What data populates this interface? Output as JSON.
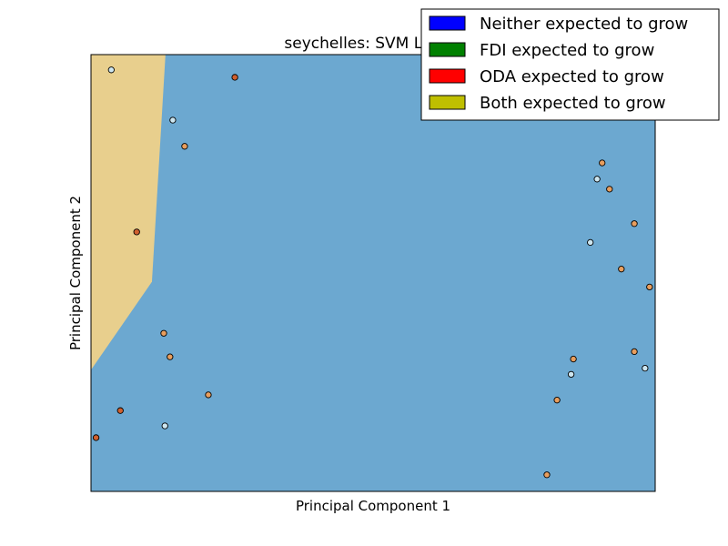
{
  "chart_data": {
    "type": "scatter",
    "title": "seychelles: SVM Linear",
    "xlabel": "Principal Component 1",
    "ylabel": "Principal Component 2",
    "xlim": [
      0,
      100
    ],
    "ylim": [
      0,
      100
    ],
    "ticks_visible": false,
    "grid": false,
    "legend_position": "top-right",
    "legend": [
      {
        "label": "Neither expected to grow",
        "color": "#0000ff"
      },
      {
        "label": "FDI expected to grow",
        "color": "#008000"
      },
      {
        "label": "ODA expected to grow",
        "color": "#ff0000"
      },
      {
        "label": "Both expected to grow",
        "color": "#bfbf00"
      }
    ],
    "regions": [
      {
        "class": "Neither expected to grow",
        "color": "#6ca8d0"
      },
      {
        "class": "Both expected to grow",
        "color": "#e8cf8d",
        "boundary": [
          [
            0,
            100
          ],
          [
            13.2,
            100
          ],
          [
            10.8,
            48
          ],
          [
            0,
            27.8
          ]
        ]
      }
    ],
    "series": [
      {
        "class": "Neither expected to grow",
        "color": "#cde6f0",
        "points": [
          [
            3.6,
            96.5
          ],
          [
            14.5,
            85
          ],
          [
            13.1,
            15
          ],
          [
            89.7,
            71.5
          ],
          [
            88.5,
            57
          ],
          [
            98.2,
            28.2
          ],
          [
            85.1,
            26.8
          ]
        ]
      },
      {
        "class": "ODA expected to grow",
        "color": "#d0602f",
        "points": [
          [
            25.5,
            94.8
          ],
          [
            8.1,
            59.4
          ],
          [
            5.2,
            18.5
          ],
          [
            0.9,
            12.3
          ]
        ]
      },
      {
        "class": "Both expected to grow",
        "color": "#e89e5e",
        "points": [
          [
            16.6,
            79
          ],
          [
            12.9,
            36.2
          ],
          [
            14.0,
            30.8
          ],
          [
            20.8,
            22.1
          ],
          [
            90.6,
            75.2
          ],
          [
            91.9,
            69.2
          ],
          [
            96.3,
            61.3
          ],
          [
            94.0,
            50.9
          ],
          [
            99.0,
            46.8
          ],
          [
            96.3,
            32
          ],
          [
            85.5,
            30.3
          ],
          [
            82.6,
            20.9
          ],
          [
            80.8,
            3.8
          ]
        ]
      }
    ]
  }
}
